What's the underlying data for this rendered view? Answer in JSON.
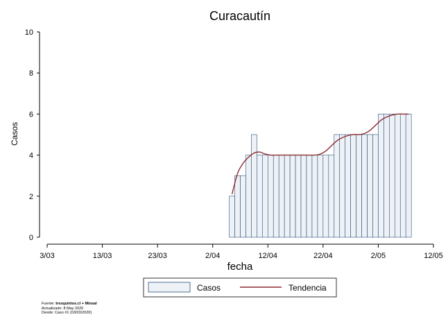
{
  "chart_data": {
    "type": "bar",
    "title": "Curacautín",
    "xlabel": "fecha",
    "ylabel": "Casos",
    "ylim": [
      0,
      10
    ],
    "yticks": [
      "0",
      "2",
      "4",
      "6",
      "8",
      "10"
    ],
    "xlim": [
      "2020-03-03",
      "2020-05-12"
    ],
    "xticks": [
      {
        "date": "2020-03-03",
        "label": "3/03"
      },
      {
        "date": "2020-03-13",
        "label": "13/03"
      },
      {
        "date": "2020-03-23",
        "label": "23/03"
      },
      {
        "date": "2020-04-02",
        "label": "2/04"
      },
      {
        "date": "2020-04-12",
        "label": "12/04"
      },
      {
        "date": "2020-04-22",
        "label": "22/04"
      },
      {
        "date": "2020-05-02",
        "label": "2/05"
      },
      {
        "date": "2020-05-12",
        "label": "12/05"
      }
    ],
    "dates": [
      "2020-04-05",
      "2020-04-06",
      "2020-04-07",
      "2020-04-08",
      "2020-04-09",
      "2020-04-10",
      "2020-04-11",
      "2020-04-12",
      "2020-04-13",
      "2020-04-14",
      "2020-04-15",
      "2020-04-16",
      "2020-04-17",
      "2020-04-18",
      "2020-04-19",
      "2020-04-20",
      "2020-04-21",
      "2020-04-22",
      "2020-04-23",
      "2020-04-24",
      "2020-04-25",
      "2020-04-26",
      "2020-04-27",
      "2020-04-28",
      "2020-04-29",
      "2020-04-30",
      "2020-05-01",
      "2020-05-02",
      "2020-05-03",
      "2020-05-04",
      "2020-05-05",
      "2020-05-06",
      "2020-05-07"
    ],
    "series": [
      {
        "name": "Casos",
        "kind": "bar",
        "values": [
          2,
          3,
          3,
          4,
          5,
          4,
          4,
          4,
          4,
          4,
          4,
          4,
          4,
          4,
          4,
          4,
          4,
          4,
          4,
          5,
          5,
          5,
          5,
          5,
          5,
          5,
          5,
          6,
          6,
          6,
          6,
          6,
          6
        ]
      },
      {
        "name": "Tendencia",
        "kind": "line",
        "values": [
          2.1,
          3.1,
          3.6,
          3.9,
          4.1,
          4.15,
          4.05,
          4.0,
          4.0,
          4.0,
          4.0,
          4.0,
          4.0,
          4.0,
          4.0,
          4.0,
          4.05,
          4.2,
          4.45,
          4.7,
          4.85,
          4.95,
          5.0,
          5.0,
          5.05,
          5.2,
          5.45,
          5.7,
          5.85,
          5.95,
          6.0,
          6.0,
          6.0
        ]
      }
    ],
    "colors": {
      "bar_fill": "#eef2f6",
      "bar_stroke": "#2b4f7a",
      "line": "#8b2a2f"
    },
    "legend_position": "bottom",
    "grid": false
  },
  "source": {
    "line1_prefix": "Fuente: ",
    "line1_bold": "tresquintos.cl + Minsal",
    "line2": "Actualizado: 8 May 2020",
    "line3": "Desde: Caso #1  (03/03/2020)"
  }
}
